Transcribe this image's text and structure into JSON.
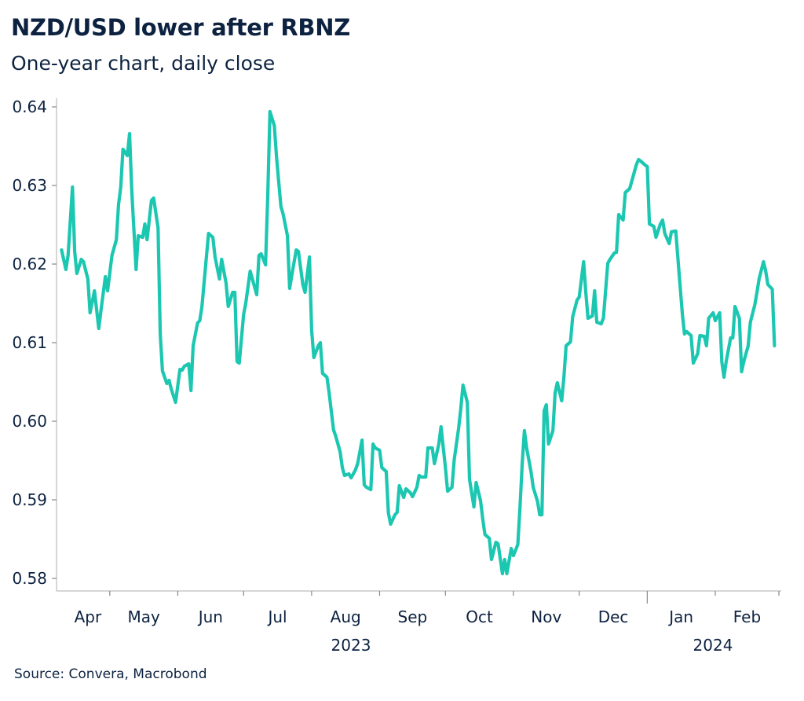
{
  "chart_data": {
    "type": "line",
    "title": "NZD/USD lower after RBNZ",
    "subtitle": "One-year chart, daily close",
    "source": "Source: Convera, Macrobond",
    "xlabel": "",
    "ylabel": "",
    "ylim": [
      0.58,
      0.64
    ],
    "yticks": [
      "0.58",
      "0.59",
      "0.60",
      "0.61",
      "0.62",
      "0.63",
      "0.64"
    ],
    "xtick_labels": [
      "Apr",
      "May",
      "Jun",
      "Jul",
      "Aug",
      "Sep",
      "Oct",
      "Nov",
      "Dec",
      "Jan",
      "Feb"
    ],
    "year_labels": [
      "2023",
      "2024"
    ],
    "grid": false,
    "line_color": "#1cc7b1",
    "series": [
      {
        "points": [
          [
            "2023-04-09",
            0.6218
          ],
          [
            "2023-04-11",
            0.6193
          ],
          [
            "2023-04-12",
            0.6211
          ],
          [
            "2023-04-14",
            0.6298
          ],
          [
            "2023-04-15",
            0.6216
          ],
          [
            "2023-04-16",
            0.6188
          ],
          [
            "2023-04-18",
            0.6206
          ],
          [
            "2023-04-19",
            0.6203
          ],
          [
            "2023-04-21",
            0.6181
          ],
          [
            "2023-04-22",
            0.6138
          ],
          [
            "2023-04-24",
            0.6166
          ],
          [
            "2023-04-26",
            0.6118
          ],
          [
            "2023-04-27",
            0.6141
          ],
          [
            "2023-04-29",
            0.6184
          ],
          [
            "2023-04-30",
            0.6166
          ],
          [
            "2023-05-02",
            0.6211
          ],
          [
            "2023-05-04",
            0.6231
          ],
          [
            "2023-05-05",
            0.6276
          ],
          [
            "2023-05-06",
            0.6298
          ],
          [
            "2023-05-07",
            0.6346
          ],
          [
            "2023-05-09",
            0.6338
          ],
          [
            "2023-05-10",
            0.6366
          ],
          [
            "2023-05-11",
            0.6294
          ],
          [
            "2023-05-13",
            0.6193
          ],
          [
            "2023-05-14",
            0.6236
          ],
          [
            "2023-05-16",
            0.6234
          ],
          [
            "2023-05-17",
            0.6251
          ],
          [
            "2023-05-18",
            0.6231
          ],
          [
            "2023-05-20",
            0.6281
          ],
          [
            "2023-05-21",
            0.6284
          ],
          [
            "2023-05-23",
            0.6246
          ],
          [
            "2023-05-24",
            0.6111
          ],
          [
            "2023-05-25",
            0.6064
          ],
          [
            "2023-05-27",
            0.6048
          ],
          [
            "2023-05-28",
            0.6052
          ],
          [
            "2023-05-29",
            0.6041
          ],
          [
            "2023-05-31",
            0.6024
          ],
          [
            "2023-06-02",
            0.6066
          ],
          [
            "2023-06-03",
            0.6065
          ],
          [
            "2023-06-04",
            0.607
          ],
          [
            "2023-06-06",
            0.6073
          ],
          [
            "2023-06-07",
            0.6039
          ],
          [
            "2023-06-08",
            0.6096
          ],
          [
            "2023-06-10",
            0.6125
          ],
          [
            "2023-06-11",
            0.6128
          ],
          [
            "2023-06-12",
            0.6146
          ],
          [
            "2023-06-14",
            0.6208
          ],
          [
            "2023-06-15",
            0.6239
          ],
          [
            "2023-06-17",
            0.6234
          ],
          [
            "2023-06-18",
            0.6209
          ],
          [
            "2023-06-20",
            0.6181
          ],
          [
            "2023-06-21",
            0.6206
          ],
          [
            "2023-06-23",
            0.6176
          ],
          [
            "2023-06-24",
            0.6146
          ],
          [
            "2023-06-26",
            0.6164
          ],
          [
            "2023-06-27",
            0.6164
          ],
          [
            "2023-06-28",
            0.6076
          ],
          [
            "2023-06-29",
            0.6074
          ],
          [
            "2023-07-01",
            0.6136
          ],
          [
            "2023-07-02",
            0.615
          ],
          [
            "2023-07-04",
            0.6191
          ],
          [
            "2023-07-05",
            0.6181
          ],
          [
            "2023-07-07",
            0.6161
          ],
          [
            "2023-07-08",
            0.6211
          ],
          [
            "2023-07-09",
            0.6213
          ],
          [
            "2023-07-11",
            0.6199
          ],
          [
            "2023-07-12",
            0.6286
          ],
          [
            "2023-07-13",
            0.6394
          ],
          [
            "2023-07-15",
            0.6376
          ],
          [
            "2023-07-16",
            0.6336
          ],
          [
            "2023-07-18",
            0.6273
          ],
          [
            "2023-07-19",
            0.6264
          ],
          [
            "2023-07-21",
            0.6236
          ],
          [
            "2023-07-22",
            0.6169
          ],
          [
            "2023-07-23",
            0.6186
          ],
          [
            "2023-07-25",
            0.6218
          ],
          [
            "2023-07-26",
            0.6216
          ],
          [
            "2023-07-28",
            0.6174
          ],
          [
            "2023-07-29",
            0.6164
          ],
          [
            "2023-07-31",
            0.6209
          ],
          [
            "2023-08-01",
            0.6116
          ],
          [
            "2023-08-02",
            0.6081
          ],
          [
            "2023-08-04",
            0.6096
          ],
          [
            "2023-08-05",
            0.61
          ],
          [
            "2023-08-06",
            0.6061
          ],
          [
            "2023-08-08",
            0.6056
          ],
          [
            "2023-08-09",
            0.6036
          ],
          [
            "2023-08-11",
            0.5989
          ],
          [
            "2023-08-12",
            0.5981
          ],
          [
            "2023-08-14",
            0.5961
          ],
          [
            "2023-08-15",
            0.5941
          ],
          [
            "2023-08-16",
            0.5931
          ],
          [
            "2023-08-18",
            0.5933
          ],
          [
            "2023-08-19",
            0.5928
          ],
          [
            "2023-08-21",
            0.5938
          ],
          [
            "2023-08-22",
            0.5946
          ],
          [
            "2023-08-24",
            0.5976
          ],
          [
            "2023-08-25",
            0.5919
          ],
          [
            "2023-08-26",
            0.5916
          ],
          [
            "2023-08-28",
            0.5913
          ],
          [
            "2023-08-29",
            0.5971
          ],
          [
            "2023-08-30",
            0.5966
          ],
          [
            "2023-09-01",
            0.5963
          ],
          [
            "2023-09-02",
            0.5941
          ],
          [
            "2023-09-04",
            0.5936
          ],
          [
            "2023-09-05",
            0.5883
          ],
          [
            "2023-09-06",
            0.5869
          ],
          [
            "2023-09-08",
            0.5881
          ],
          [
            "2023-09-09",
            0.5884
          ],
          [
            "2023-09-10",
            0.5918
          ],
          [
            "2023-09-12",
            0.5903
          ],
          [
            "2023-09-13",
            0.5914
          ],
          [
            "2023-09-15",
            0.5909
          ],
          [
            "2023-09-16",
            0.5904
          ],
          [
            "2023-09-18",
            0.5916
          ],
          [
            "2023-09-19",
            0.5931
          ],
          [
            "2023-09-20",
            0.5929
          ],
          [
            "2023-09-22",
            0.5929
          ],
          [
            "2023-09-23",
            0.5966
          ],
          [
            "2023-09-25",
            0.5966
          ],
          [
            "2023-09-26",
            0.5946
          ],
          [
            "2023-09-28",
            0.5971
          ],
          [
            "2023-09-29",
            0.5993
          ],
          [
            "2023-10-01",
            0.5941
          ],
          [
            "2023-10-02",
            0.5911
          ],
          [
            "2023-10-04",
            0.5916
          ],
          [
            "2023-10-05",
            0.5951
          ],
          [
            "2023-10-07",
            0.5991
          ],
          [
            "2023-10-08",
            0.6016
          ],
          [
            "2023-10-09",
            0.6046
          ],
          [
            "2023-10-11",
            0.6024
          ],
          [
            "2023-10-12",
            0.5926
          ],
          [
            "2023-10-14",
            0.5891
          ],
          [
            "2023-10-15",
            0.5922
          ],
          [
            "2023-10-17",
            0.5899
          ],
          [
            "2023-10-18",
            0.5876
          ],
          [
            "2023-10-19",
            0.5856
          ],
          [
            "2023-10-21",
            0.5851
          ],
          [
            "2023-10-22",
            0.5824
          ],
          [
            "2023-10-24",
            0.5846
          ],
          [
            "2023-10-25",
            0.5844
          ],
          [
            "2023-10-27",
            0.5806
          ],
          [
            "2023-10-28",
            0.5824
          ],
          [
            "2023-10-29",
            0.5806
          ],
          [
            "2023-10-31",
            0.5838
          ],
          [
            "2023-11-01",
            0.5829
          ],
          [
            "2023-11-03",
            0.5843
          ],
          [
            "2023-11-04",
            0.5891
          ],
          [
            "2023-11-05",
            0.5946
          ],
          [
            "2023-11-06",
            0.5988
          ],
          [
            "2023-11-07",
            0.5966
          ],
          [
            "2023-11-09",
            0.5936
          ],
          [
            "2023-11-10",
            0.5916
          ],
          [
            "2023-11-12",
            0.5898
          ],
          [
            "2023-11-13",
            0.5881
          ],
          [
            "2023-11-14",
            0.5881
          ],
          [
            "2023-11-15",
            0.6013
          ],
          [
            "2023-11-16",
            0.6021
          ],
          [
            "2023-11-17",
            0.5971
          ],
          [
            "2023-11-19",
            0.5988
          ],
          [
            "2023-11-20",
            0.6036
          ],
          [
            "2023-11-21",
            0.6049
          ],
          [
            "2023-11-23",
            0.6026
          ],
          [
            "2023-11-24",
            0.6056
          ],
          [
            "2023-11-25",
            0.6096
          ],
          [
            "2023-11-27",
            0.6101
          ],
          [
            "2023-11-28",
            0.6133
          ],
          [
            "2023-11-30",
            0.6154
          ],
          [
            "2023-12-01",
            0.6158
          ],
          [
            "2023-12-03",
            0.6203
          ],
          [
            "2023-12-04",
            0.6164
          ],
          [
            "2023-12-05",
            0.6131
          ],
          [
            "2023-12-07",
            0.6134
          ],
          [
            "2023-12-08",
            0.6166
          ],
          [
            "2023-12-09",
            0.6126
          ],
          [
            "2023-12-11",
            0.6124
          ],
          [
            "2023-12-12",
            0.6131
          ],
          [
            "2023-12-14",
            0.6201
          ],
          [
            "2023-12-15",
            0.6206
          ],
          [
            "2023-12-17",
            0.6214
          ],
          [
            "2023-12-18",
            0.6215
          ],
          [
            "2023-12-19",
            0.6263
          ],
          [
            "2023-12-21",
            0.6256
          ],
          [
            "2023-12-22",
            0.6291
          ],
          [
            "2023-12-24",
            0.6296
          ],
          [
            "2023-12-25",
            0.6306
          ],
          [
            "2023-12-27",
            0.6326
          ],
          [
            "2023-12-28",
            0.6333
          ],
          [
            "2023-12-29",
            0.6331
          ],
          [
            "2023-12-31",
            0.6326
          ],
          [
            "2024-01-01",
            0.6324
          ],
          [
            "2024-01-02",
            0.6251
          ],
          [
            "2024-01-04",
            0.6248
          ],
          [
            "2024-01-05",
            0.6234
          ],
          [
            "2024-01-07",
            0.6251
          ],
          [
            "2024-01-08",
            0.6256
          ],
          [
            "2024-01-09",
            0.6239
          ],
          [
            "2024-01-11",
            0.6226
          ],
          [
            "2024-01-12",
            0.6241
          ],
          [
            "2024-01-14",
            0.6242
          ],
          [
            "2024-01-15",
            0.6206
          ],
          [
            "2024-01-17",
            0.6136
          ],
          [
            "2024-01-18",
            0.6111
          ],
          [
            "2024-01-19",
            0.6114
          ],
          [
            "2024-01-21",
            0.6109
          ],
          [
            "2024-01-22",
            0.6074
          ],
          [
            "2024-01-24",
            0.6086
          ],
          [
            "2024-01-25",
            0.6109
          ],
          [
            "2024-01-27",
            0.6108
          ],
          [
            "2024-01-28",
            0.6096
          ],
          [
            "2024-01-29",
            0.6131
          ],
          [
            "2024-01-31",
            0.6138
          ],
          [
            "2024-02-01",
            0.6128
          ],
          [
            "2024-02-03",
            0.6138
          ],
          [
            "2024-02-04",
            0.6076
          ],
          [
            "2024-02-05",
            0.6056
          ],
          [
            "2024-02-06",
            0.6076
          ],
          [
            "2024-02-08",
            0.6106
          ],
          [
            "2024-02-09",
            0.6106
          ],
          [
            "2024-02-10",
            0.6146
          ],
          [
            "2024-02-12",
            0.6131
          ],
          [
            "2024-02-13",
            0.6063
          ],
          [
            "2024-02-14",
            0.6076
          ],
          [
            "2024-02-16",
            0.6096
          ],
          [
            "2024-02-17",
            0.6126
          ],
          [
            "2024-02-19",
            0.6148
          ],
          [
            "2024-02-20",
            0.6164
          ],
          [
            "2024-02-21",
            0.6181
          ],
          [
            "2024-02-23",
            0.6203
          ],
          [
            "2024-02-24",
            0.6191
          ],
          [
            "2024-02-25",
            0.6174
          ],
          [
            "2024-02-27",
            0.6168
          ],
          [
            "2024-02-28",
            0.6096
          ]
        ]
      }
    ]
  }
}
